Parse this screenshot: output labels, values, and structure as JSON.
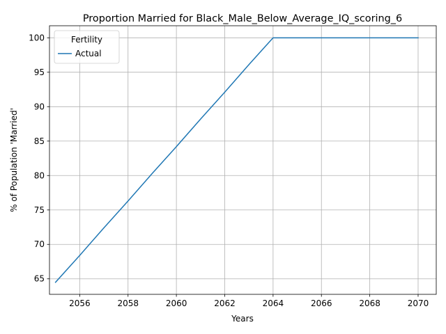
{
  "chart_data": {
    "type": "line",
    "title": "Proportion Married for Black_Male_Below_Average_IQ_scoring_6",
    "xlabel": "Years",
    "ylabel": "% of Population 'Married'",
    "xlim": [
      2054.75,
      2070.75
    ],
    "ylim": [
      62.75,
      101.75
    ],
    "xticks": [
      2056,
      2058,
      2060,
      2062,
      2064,
      2066,
      2068,
      2070
    ],
    "yticks": [
      65,
      70,
      75,
      80,
      85,
      90,
      95,
      100
    ],
    "grid": true,
    "legend": {
      "title": "Fertility",
      "placement": "top-left"
    },
    "series": [
      {
        "name": "Actual",
        "color": "#1f77b4",
        "x": [
          2055,
          2056,
          2057,
          2058,
          2059,
          2060,
          2061,
          2062,
          2063,
          2064,
          2065,
          2066,
          2067,
          2068,
          2069,
          2070
        ],
        "y": [
          64.5,
          68.4,
          72.4,
          76.3,
          80.3,
          84.2,
          88.2,
          92.1,
          96.1,
          100,
          100,
          100,
          100,
          100,
          100,
          100
        ]
      }
    ]
  }
}
